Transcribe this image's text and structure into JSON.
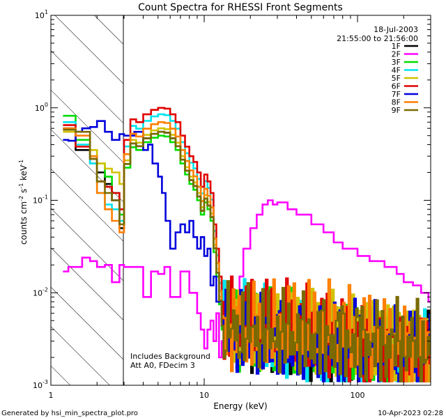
{
  "chart_data": {
    "type": "line",
    "title": "Count Spectra for RHESSI Front Segments",
    "xlabel": "Energy (keV)",
    "ylabel": "counts cm",
    "ylabel_units": {
      "sup1": "-2",
      "mid": " s",
      "sup2": "-1",
      "mid2": " keV",
      "sup3": "-1"
    },
    "x_scale": "log",
    "y_scale": "log",
    "xlim": [
      1,
      300
    ],
    "ylim": [
      0.001,
      10
    ],
    "x_ticks": [
      {
        "v": 1,
        "label": "1"
      },
      {
        "v": 10,
        "label": "10"
      },
      {
        "v": 100,
        "label": "100"
      }
    ],
    "y_ticks": [
      {
        "v": 0.001,
        "base": "10",
        "exp": "-3"
      },
      {
        "v": 0.01,
        "base": "10",
        "exp": "-2"
      },
      {
        "v": 0.1,
        "base": "10",
        "exp": "-1"
      },
      {
        "v": 1,
        "base": "10",
        "exp": "0"
      },
      {
        "v": 10,
        "base": "10",
        "exp": "1"
      }
    ],
    "date_label": "18-Jul-2003",
    "time_range": "21:55:00 to 21:56:00",
    "annotations": [
      "Includes Background",
      "Att A0, FDecim 3"
    ],
    "shaded_region": [
      1,
      3
    ],
    "footer_left": "Generated by hsi_min_spectra_plot.pro",
    "footer_right": "10-Apr-2023 02:28",
    "series": [
      {
        "name": "1F",
        "color": "#000000",
        "low": [
          0.6,
          0.35,
          0.25,
          0.2,
          0.15,
          0.1,
          0.05
        ],
        "peak": 0.55,
        "tailc": 0.0032
      },
      {
        "name": "2F",
        "color": "#ff00ff",
        "points": [
          [
            1.2,
            0.017
          ],
          [
            1.3,
            0.019
          ],
          [
            1.45,
            0.019
          ],
          [
            1.6,
            0.024
          ],
          [
            1.8,
            0.022
          ],
          [
            2.0,
            0.019
          ],
          [
            2.25,
            0.02
          ],
          [
            2.5,
            0.013
          ],
          [
            2.8,
            0.02
          ],
          [
            3.0,
            0.019
          ],
          [
            3.5,
            0.019
          ],
          [
            4.0,
            0.009
          ],
          [
            4.5,
            0.017
          ],
          [
            5.0,
            0.016
          ],
          [
            5.5,
            0.019
          ],
          [
            6.0,
            0.009
          ],
          [
            7.0,
            0.017
          ],
          [
            8.0,
            0.01
          ],
          [
            9.0,
            0.006
          ],
          [
            9.5,
            0.004
          ],
          [
            10.0,
            0.0025
          ],
          [
            10.5,
            0.004
          ],
          [
            11.0,
            0.005
          ],
          [
            11.5,
            0.003
          ],
          [
            12.0,
            0.006
          ],
          [
            12.5,
            0.002
          ],
          [
            13.0,
            0.003
          ],
          [
            14.0,
            0.006
          ],
          [
            15.0,
            0.004
          ],
          [
            16.0,
            0.008
          ],
          [
            17.0,
            0.015
          ],
          [
            18.0,
            0.03
          ],
          [
            20.0,
            0.05
          ],
          [
            22.0,
            0.07
          ],
          [
            24.0,
            0.09
          ],
          [
            26.0,
            0.1
          ],
          [
            28.0,
            0.09
          ],
          [
            30.0,
            0.095
          ],
          [
            35.0,
            0.08
          ],
          [
            40.0,
            0.07
          ],
          [
            50.0,
            0.055
          ],
          [
            60.0,
            0.045
          ],
          [
            70.0,
            0.035
          ],
          [
            80.0,
            0.03
          ],
          [
            100.0,
            0.025
          ],
          [
            120.0,
            0.022
          ],
          [
            150.0,
            0.019
          ],
          [
            180.0,
            0.016
          ],
          [
            200.0,
            0.013
          ],
          [
            230.0,
            0.012
          ],
          [
            260.0,
            0.01
          ],
          [
            290.0,
            0.008
          ],
          [
            300.0,
            0.008
          ]
        ]
      },
      {
        "name": "3F",
        "color": "#00dd00",
        "low": [
          0.82,
          0.45,
          0.3,
          0.25,
          0.18,
          0.12,
          0.07
        ],
        "peak": 0.5,
        "tailc": 0.0036
      },
      {
        "name": "4F",
        "color": "#00e5ee",
        "low": [
          0.7,
          0.4,
          0.25,
          0.12,
          0.09,
          0.08,
          0.06
        ],
        "peak": 0.85,
        "tailc": 0.0033
      },
      {
        "name": "5F",
        "color": "#d2c200",
        "low": [
          0.55,
          0.5,
          0.35,
          0.25,
          0.22,
          0.2,
          0.15
        ],
        "peak": 0.6,
        "tailc": 0.0037
      },
      {
        "name": "6F",
        "color": "#e00000",
        "low": [
          0.65,
          0.38,
          0.28,
          0.16,
          0.14,
          0.12,
          0.08
        ],
        "peak": 1.0,
        "tailc": 0.0036
      },
      {
        "name": "7F",
        "color": "#0000dd",
        "points": [
          [
            1.2,
            0.45
          ],
          [
            1.3,
            0.44
          ],
          [
            1.45,
            0.55
          ],
          [
            1.6,
            0.6
          ],
          [
            1.8,
            0.62
          ],
          [
            2.0,
            0.72
          ],
          [
            2.25,
            0.55
          ],
          [
            2.5,
            0.45
          ],
          [
            2.8,
            0.52
          ],
          [
            3.0,
            0.5
          ],
          [
            3.5,
            0.55
          ],
          [
            4.0,
            0.35
          ],
          [
            4.3,
            0.4
          ],
          [
            4.6,
            0.25
          ],
          [
            5.0,
            0.18
          ],
          [
            5.3,
            0.12
          ],
          [
            5.6,
            0.06
          ],
          [
            6.0,
            0.03
          ],
          [
            6.5,
            0.045
          ],
          [
            7.0,
            0.055
          ],
          [
            7.5,
            0.045
          ],
          [
            8.0,
            0.06
          ],
          [
            8.5,
            0.04
          ],
          [
            9.0,
            0.03
          ],
          [
            9.5,
            0.04
          ],
          [
            10.0,
            0.025
          ],
          [
            10.5,
            0.03
          ],
          [
            11.0,
            0.012
          ],
          [
            11.5,
            0.015
          ],
          [
            12.0,
            0.008
          ],
          [
            13.0,
            0.005
          ]
        ],
        "tailc": 0.0031,
        "tail_start": 13
      },
      {
        "name": "8F",
        "color": "#ff7f00",
        "low": [
          0.6,
          0.5,
          0.3,
          0.12,
          0.08,
          0.06,
          0.045
        ],
        "peak": 0.7,
        "tailc": 0.0038
      },
      {
        "name": "9F",
        "color": "#7a6a00",
        "low": [
          0.58,
          0.55,
          0.28,
          0.16,
          0.12,
          0.1,
          0.055
        ],
        "peak": 0.55,
        "tailc": 0.0035
      }
    ]
  }
}
